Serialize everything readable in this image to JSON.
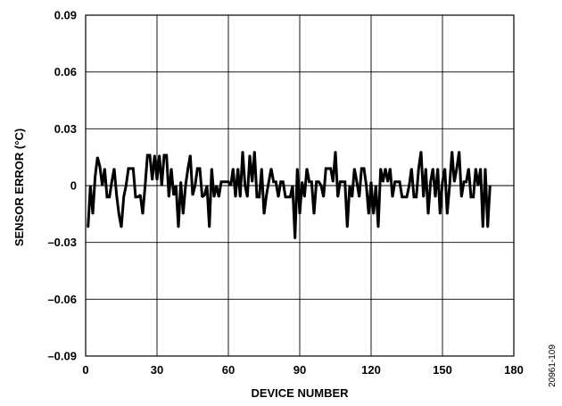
{
  "chart_data": {
    "type": "line",
    "title": "",
    "xlabel": "DEVICE NUMBER",
    "ylabel": "SENSOR ERROR (°C)",
    "xlim": [
      0,
      180
    ],
    "ylim": [
      -0.09,
      0.09
    ],
    "xticks": [
      0,
      30,
      60,
      90,
      120,
      150,
      180
    ],
    "xtick_labels": [
      "0",
      "30",
      "60",
      "90",
      "120",
      "150",
      "180"
    ],
    "yticks": [
      0.09,
      0.06,
      0.03,
      0,
      -0.03,
      -0.06,
      -0.09
    ],
    "ytick_labels": [
      "0.09",
      "0.06",
      "0.03",
      "0",
      "–0.03",
      "–0.06",
      "–0.09"
    ],
    "grid": true,
    "figure_id": "20961-109",
    "colors": {
      "line": "#000000",
      "grid": "#000000",
      "background": "#ffffff"
    },
    "series": [
      {
        "values": [
          [
            1,
            -0.022
          ],
          [
            2,
            0.0
          ],
          [
            3,
            -0.015
          ],
          [
            4,
            0.005
          ],
          [
            5,
            0.015
          ],
          [
            6,
            0.01
          ],
          [
            7,
            0.0
          ],
          [
            8,
            0.009
          ],
          [
            9,
            -0.006
          ],
          [
            10,
            -0.006
          ],
          [
            11,
            0.002
          ],
          [
            12,
            0.009
          ],
          [
            13,
            -0.005
          ],
          [
            14,
            -0.015
          ],
          [
            15,
            -0.022
          ],
          [
            16,
            -0.006
          ],
          [
            17,
            0.0
          ],
          [
            18,
            0.009
          ],
          [
            19,
            0.009
          ],
          [
            20,
            0.009
          ],
          [
            21,
            -0.006
          ],
          [
            22,
            -0.006
          ],
          [
            23,
            -0.005
          ],
          [
            24,
            -0.015
          ],
          [
            25,
            0.0
          ],
          [
            26,
            0.016
          ],
          [
            27,
            0.016
          ],
          [
            28,
            0.003
          ],
          [
            29,
            0.016
          ],
          [
            30,
            0.003
          ],
          [
            31,
            0.016
          ],
          [
            32,
            0.0
          ],
          [
            33,
            0.016
          ],
          [
            34,
            0.016
          ],
          [
            35,
            -0.006
          ],
          [
            36,
            0.009
          ],
          [
            37,
            -0.005
          ],
          [
            38,
            0.0
          ],
          [
            39,
            -0.022
          ],
          [
            40,
            0.002
          ],
          [
            41,
            -0.015
          ],
          [
            42,
            0.0
          ],
          [
            43,
            0.009
          ],
          [
            44,
            0.016
          ],
          [
            45,
            -0.005
          ],
          [
            46,
            0.0
          ],
          [
            47,
            0.009
          ],
          [
            48,
            0.009
          ],
          [
            49,
            -0.006
          ],
          [
            50,
            -0.005
          ],
          [
            51,
            0.0
          ],
          [
            52,
            -0.022
          ],
          [
            53,
            0.009
          ],
          [
            54,
            -0.006
          ],
          [
            55,
            0.0
          ],
          [
            56,
            -0.006
          ],
          [
            57,
            0.002
          ],
          [
            58,
            0.002
          ],
          [
            59,
            0.002
          ],
          [
            60,
            0.002
          ],
          [
            61,
            0.0
          ],
          [
            62,
            0.009
          ],
          [
            63,
            -0.006
          ],
          [
            64,
            0.009
          ],
          [
            65,
            -0.006
          ],
          [
            66,
            0.018
          ],
          [
            67,
            0.0
          ],
          [
            68,
            -0.006
          ],
          [
            69,
            0.016
          ],
          [
            70,
            0.002
          ],
          [
            71,
            0.018
          ],
          [
            72,
            -0.006
          ],
          [
            73,
            -0.006
          ],
          [
            74,
            0.009
          ],
          [
            75,
            -0.015
          ],
          [
            76,
            -0.005
          ],
          [
            77,
            0.002
          ],
          [
            78,
            0.009
          ],
          [
            79,
            0.002
          ],
          [
            80,
            0.002
          ],
          [
            81,
            -0.006
          ],
          [
            82,
            0.002
          ],
          [
            83,
            0.002
          ],
          [
            84,
            -0.006
          ],
          [
            85,
            -0.006
          ],
          [
            86,
            -0.006
          ],
          [
            87,
            0.0
          ],
          [
            88,
            -0.028
          ],
          [
            89,
            0.009
          ],
          [
            90,
            -0.015
          ],
          [
            91,
            0.002
          ],
          [
            92,
            -0.006
          ],
          [
            93,
            0.009
          ],
          [
            94,
            0.002
          ],
          [
            95,
            0.002
          ],
          [
            96,
            -0.015
          ],
          [
            97,
            0.002
          ],
          [
            98,
            0.002
          ],
          [
            99,
            0.0
          ],
          [
            100,
            -0.006
          ],
          [
            101,
            0.009
          ],
          [
            102,
            0.009
          ],
          [
            103,
            0.009
          ],
          [
            104,
            0.002
          ],
          [
            105,
            0.018
          ],
          [
            106,
            -0.006
          ],
          [
            107,
            0.002
          ],
          [
            108,
            0.002
          ],
          [
            109,
            0.002
          ],
          [
            110,
            -0.022
          ],
          [
            111,
            0.0
          ],
          [
            112,
            -0.006
          ],
          [
            113,
            0.009
          ],
          [
            114,
            0.002
          ],
          [
            115,
            -0.006
          ],
          [
            116,
            0.009
          ],
          [
            117,
            0.009
          ],
          [
            118,
            0.0
          ],
          [
            119,
            -0.015
          ],
          [
            120,
            0.002
          ],
          [
            121,
            -0.015
          ],
          [
            122,
            0.0
          ],
          [
            123,
            -0.022
          ],
          [
            124,
            0.009
          ],
          [
            125,
            0.002
          ],
          [
            126,
            0.009
          ],
          [
            127,
            0.002
          ],
          [
            128,
            0.009
          ],
          [
            129,
            -0.006
          ],
          [
            130,
            0.002
          ],
          [
            131,
            0.002
          ],
          [
            132,
            0.002
          ],
          [
            133,
            -0.006
          ],
          [
            134,
            -0.006
          ],
          [
            135,
            -0.006
          ],
          [
            136,
            0.0
          ],
          [
            137,
            0.009
          ],
          [
            138,
            -0.006
          ],
          [
            139,
            -0.006
          ],
          [
            140,
            0.009
          ],
          [
            141,
            0.018
          ],
          [
            142,
            -0.006
          ],
          [
            143,
            0.009
          ],
          [
            144,
            -0.015
          ],
          [
            145,
            0.002
          ],
          [
            146,
            0.009
          ],
          [
            147,
            -0.006
          ],
          [
            148,
            0.009
          ],
          [
            149,
            -0.015
          ],
          [
            150,
            0.002
          ],
          [
            151,
            0.009
          ],
          [
            152,
            -0.015
          ],
          [
            153,
            0.0
          ],
          [
            154,
            0.018
          ],
          [
            155,
            0.002
          ],
          [
            156,
            0.009
          ],
          [
            157,
            0.018
          ],
          [
            158,
            -0.006
          ],
          [
            159,
            0.002
          ],
          [
            160,
            0.002
          ],
          [
            161,
            0.009
          ],
          [
            162,
            -0.006
          ],
          [
            163,
            -0.006
          ],
          [
            164,
            0.009
          ],
          [
            165,
            0.0
          ],
          [
            166,
            0.009
          ],
          [
            167,
            -0.022
          ],
          [
            168,
            0.009
          ],
          [
            169,
            -0.022
          ],
          [
            170,
            0.0
          ]
        ]
      }
    ]
  }
}
